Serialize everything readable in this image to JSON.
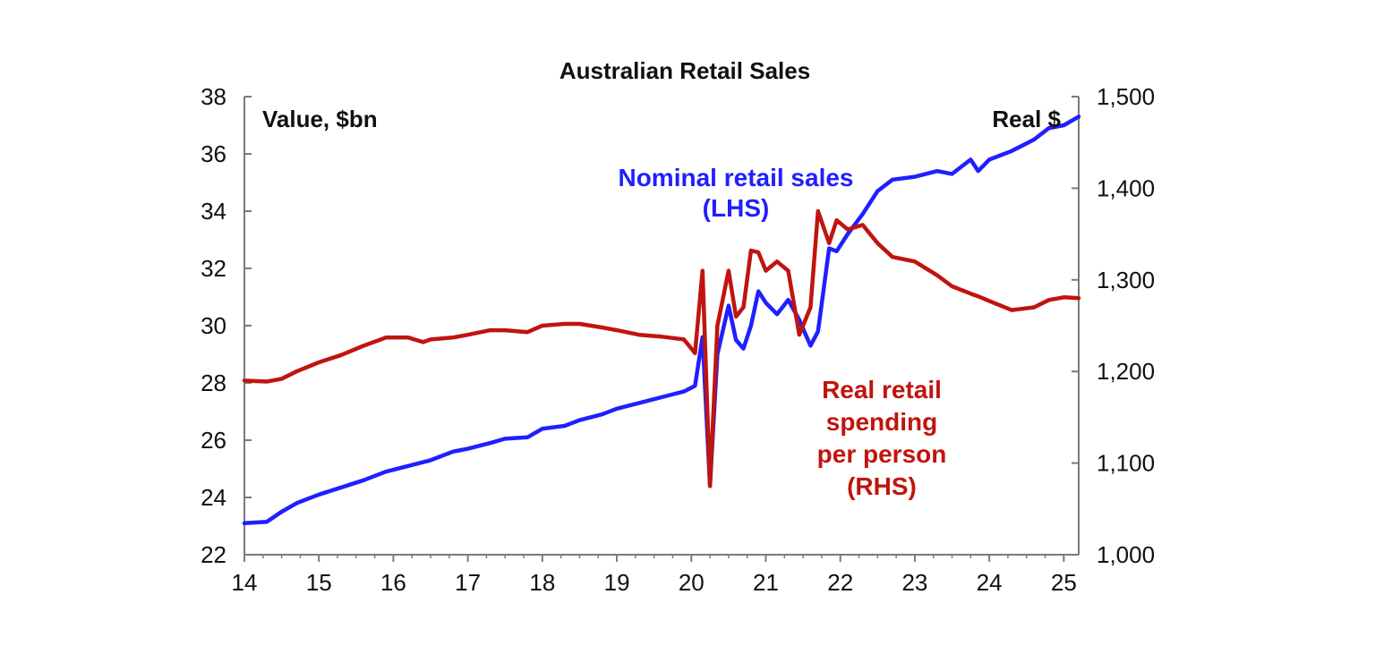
{
  "chart_data": {
    "type": "line",
    "title": "Australian Retail Sales",
    "left_axis_label": "Value, $bn",
    "right_axis_label": "Real $",
    "x_ticks": [
      "14",
      "15",
      "16",
      "17",
      "18",
      "19",
      "20",
      "21",
      "22",
      "23",
      "24",
      "25"
    ],
    "xlim": [
      2014,
      2025.2
    ],
    "y_left": {
      "lim": [
        22,
        38
      ],
      "ticks": [
        "22",
        "24",
        "26",
        "28",
        "30",
        "32",
        "34",
        "36",
        "38"
      ]
    },
    "y_right": {
      "lim": [
        1000,
        1500
      ],
      "ticks": [
        "1,000",
        "1,100",
        "1,200",
        "1,300",
        "1,400",
        "1,500"
      ]
    },
    "series": [
      {
        "name": "Nominal retail sales",
        "label_lines": [
          "Nominal retail sales",
          "(LHS)"
        ],
        "axis": "left",
        "color": "#1f1fff",
        "x": [
          2014.0,
          2014.3,
          2014.5,
          2014.7,
          2015.0,
          2015.3,
          2015.6,
          2015.9,
          2016.2,
          2016.5,
          2016.8,
          2017.0,
          2017.3,
          2017.5,
          2017.8,
          2018.0,
          2018.3,
          2018.5,
          2018.8,
          2019.0,
          2019.3,
          2019.6,
          2019.9,
          2020.05,
          2020.15,
          2020.25,
          2020.35,
          2020.5,
          2020.6,
          2020.7,
          2020.8,
          2020.9,
          2021.0,
          2021.15,
          2021.3,
          2021.45,
          2021.6,
          2021.7,
          2021.85,
          2021.95,
          2022.1,
          2022.3,
          2022.5,
          2022.7,
          2023.0,
          2023.3,
          2023.5,
          2023.75,
          2023.85,
          2024.0,
          2024.3,
          2024.6,
          2024.8,
          2025.0,
          2025.2
        ],
        "values": [
          23.1,
          23.15,
          23.5,
          23.8,
          24.1,
          24.35,
          24.6,
          24.9,
          25.1,
          25.3,
          25.6,
          25.7,
          25.9,
          26.05,
          26.1,
          26.4,
          26.5,
          26.7,
          26.9,
          27.1,
          27.3,
          27.5,
          27.7,
          27.9,
          29.6,
          24.4,
          29.0,
          30.7,
          29.5,
          29.2,
          30.0,
          31.2,
          30.8,
          30.4,
          30.9,
          30.2,
          29.3,
          29.8,
          32.7,
          32.6,
          33.2,
          33.9,
          34.7,
          35.1,
          35.2,
          35.4,
          35.3,
          35.8,
          35.4,
          35.8,
          36.1,
          36.5,
          36.9,
          37.0,
          37.3
        ]
      },
      {
        "name": "Real retail spending per person",
        "label_lines": [
          "Real retail",
          "spending",
          "per person",
          "(RHS)"
        ],
        "axis": "right",
        "color": "#c0140f",
        "x": [
          2014.0,
          2014.3,
          2014.5,
          2014.7,
          2015.0,
          2015.3,
          2015.6,
          2015.9,
          2016.2,
          2016.4,
          2016.5,
          2016.8,
          2017.0,
          2017.3,
          2017.5,
          2017.8,
          2018.0,
          2018.3,
          2018.5,
          2018.8,
          2019.0,
          2019.3,
          2019.6,
          2019.9,
          2020.05,
          2020.15,
          2020.25,
          2020.35,
          2020.5,
          2020.6,
          2020.7,
          2020.8,
          2020.9,
          2021.0,
          2021.15,
          2021.3,
          2021.45,
          2021.6,
          2021.7,
          2021.85,
          2021.95,
          2022.1,
          2022.3,
          2022.5,
          2022.7,
          2023.0,
          2023.3,
          2023.5,
          2023.75,
          2023.85,
          2024.0,
          2024.3,
          2024.6,
          2024.8,
          2025.0,
          2025.2
        ],
        "values": [
          1190,
          1189,
          1192,
          1200,
          1210,
          1218,
          1228,
          1237,
          1237,
          1232,
          1235,
          1237,
          1240,
          1245,
          1245,
          1243,
          1250,
          1252,
          1252,
          1248,
          1245,
          1240,
          1238,
          1235,
          1220,
          1310,
          1075,
          1250,
          1310,
          1260,
          1270,
          1332,
          1330,
          1310,
          1320,
          1310,
          1240,
          1270,
          1375,
          1340,
          1365,
          1355,
          1360,
          1340,
          1325,
          1320,
          1305,
          1293,
          1285,
          1282,
          1277,
          1267,
          1270,
          1278,
          1281,
          1280
        ]
      }
    ],
    "grid": false,
    "legend": "none"
  }
}
